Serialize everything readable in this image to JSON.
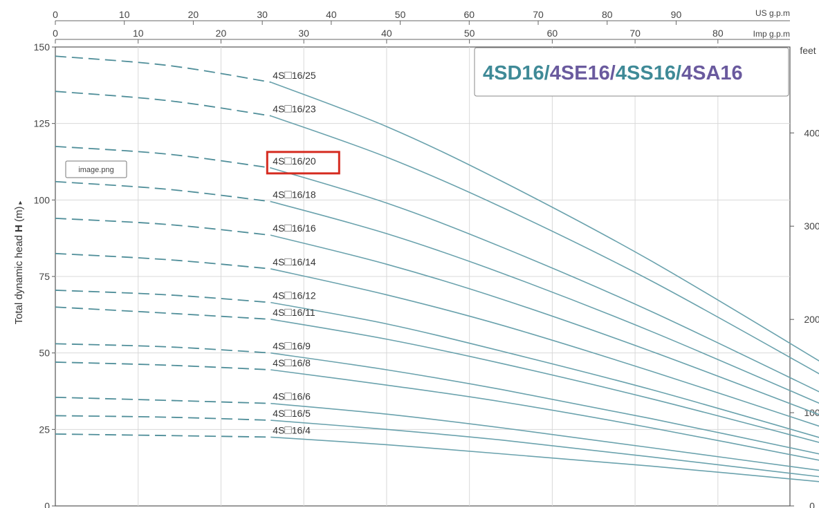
{
  "chart_data": {
    "type": "line",
    "title_parts": [
      {
        "text": "4SD16/",
        "color": "#3f8a97"
      },
      {
        "text": "4SE16/",
        "color": "#6a5a9e"
      },
      {
        "text": "4SS16/",
        "color": "#3f8a97"
      },
      {
        "text": "4SA16",
        "color": "#6a5a9e"
      }
    ],
    "ylabel_pre": "Total dynamic head ",
    "ylabel_bold": "H",
    "ylabel_post": " (m)",
    "ylabel_marker": "▸",
    "ylim": [
      0,
      150
    ],
    "y_ticks": [
      0,
      25,
      50,
      75,
      100,
      125,
      150
    ],
    "x_top_us": {
      "unit": "US g.p.m",
      "ticks": [
        0,
        10,
        20,
        30,
        40,
        50,
        60,
        70,
        80,
        90
      ],
      "range": [
        0,
        106.5
      ]
    },
    "x_top_imp": {
      "unit": "Imp g.p.m",
      "ticks": [
        0,
        10,
        20,
        30,
        40,
        50,
        60,
        70,
        80
      ],
      "range": [
        0,
        88.7
      ]
    },
    "right_axis": {
      "unit": "feet",
      "ticks": [
        0,
        100,
        200,
        300,
        400
      ],
      "range_m": [
        0,
        150
      ]
    },
    "grid": true,
    "series_label_prefix": "4S",
    "series_label_box": "□",
    "highlighted_series": "16/20",
    "image_label": "image.png",
    "series": [
      {
        "name": "16/25",
        "dashed_x": [
          0,
          13.5,
          26
        ],
        "dashed_y": [
          147,
          144,
          138.5
        ],
        "solid_x": [
          26,
          40,
          54,
          72,
          94
        ],
        "solid_y": [
          138.5,
          124,
          106,
          80,
          44.5
        ]
      },
      {
        "name": "16/23",
        "dashed_x": [
          0,
          13.5,
          26
        ],
        "dashed_y": [
          135.5,
          132.5,
          127.5
        ],
        "solid_x": [
          26,
          40,
          54,
          72,
          94
        ],
        "solid_y": [
          127.5,
          114,
          97.5,
          73.5,
          40.5
        ]
      },
      {
        "name": "16/20",
        "dashed_x": [
          0,
          13.5,
          26
        ],
        "dashed_y": [
          117.5,
          115,
          110.5
        ],
        "solid_x": [
          26,
          40,
          54,
          72,
          94
        ],
        "solid_y": [
          110.5,
          99,
          84.5,
          63.5,
          35
        ]
      },
      {
        "name": "16/18",
        "dashed_x": [
          0,
          13.5,
          26
        ],
        "dashed_y": [
          106,
          103.5,
          99.5
        ],
        "solid_x": [
          26,
          40,
          54,
          72,
          94
        ],
        "solid_y": [
          99.5,
          89,
          76,
          57,
          31.5
        ]
      },
      {
        "name": "16/16",
        "dashed_x": [
          0,
          13.5,
          26
        ],
        "dashed_y": [
          94,
          92,
          88.5
        ],
        "solid_x": [
          26,
          40,
          54,
          72,
          94
        ],
        "solid_y": [
          88.5,
          79,
          67.5,
          50.5,
          28
        ]
      },
      {
        "name": "16/14",
        "dashed_x": [
          0,
          13.5,
          26
        ],
        "dashed_y": [
          82.5,
          80.5,
          77.5
        ],
        "solid_x": [
          26,
          40,
          54,
          72,
          94
        ],
        "solid_y": [
          77.5,
          69,
          59,
          44,
          24.5
        ]
      },
      {
        "name": "16/12",
        "dashed_x": [
          0,
          13.5,
          26
        ],
        "dashed_y": [
          70.5,
          69,
          66.5
        ],
        "solid_x": [
          26,
          40,
          54,
          72,
          94
        ],
        "solid_y": [
          66.5,
          59.5,
          50.5,
          38,
          21
        ]
      },
      {
        "name": "16/11",
        "dashed_x": [
          0,
          13.5,
          26
        ],
        "dashed_y": [
          65,
          63,
          61
        ],
        "solid_x": [
          26,
          40,
          54,
          72,
          94
        ],
        "solid_y": [
          61,
          54.5,
          46.5,
          35,
          19.5
        ]
      },
      {
        "name": "16/9",
        "dashed_x": [
          0,
          13.5,
          26
        ],
        "dashed_y": [
          53,
          52,
          50
        ],
        "solid_x": [
          26,
          40,
          54,
          72,
          94
        ],
        "solid_y": [
          50,
          44.5,
          38,
          28.5,
          16
        ]
      },
      {
        "name": "16/8",
        "dashed_x": [
          0,
          13.5,
          26
        ],
        "dashed_y": [
          47,
          46,
          44.5
        ],
        "solid_x": [
          26,
          40,
          54,
          72,
          94
        ],
        "solid_y": [
          44.5,
          39.5,
          34,
          25.5,
          14
        ]
      },
      {
        "name": "16/6",
        "dashed_x": [
          0,
          13.5,
          26
        ],
        "dashed_y": [
          35.5,
          34.5,
          33.5
        ],
        "solid_x": [
          26,
          40,
          54,
          72,
          94
        ],
        "solid_y": [
          33.5,
          30,
          25.5,
          19,
          11
        ]
      },
      {
        "name": "16/5",
        "dashed_x": [
          0,
          13.5,
          26
        ],
        "dashed_y": [
          29.5,
          29,
          28
        ],
        "solid_x": [
          26,
          40,
          54,
          72,
          94
        ],
        "solid_y": [
          28,
          25,
          21.5,
          16,
          9
        ]
      },
      {
        "name": "16/4",
        "dashed_x": [
          0,
          13.5,
          26
        ],
        "dashed_y": [
          23.5,
          23,
          22.5
        ],
        "solid_x": [
          26,
          40,
          54,
          72,
          94
        ],
        "solid_y": [
          22.5,
          20,
          17,
          13,
          7.5
        ]
      }
    ]
  }
}
